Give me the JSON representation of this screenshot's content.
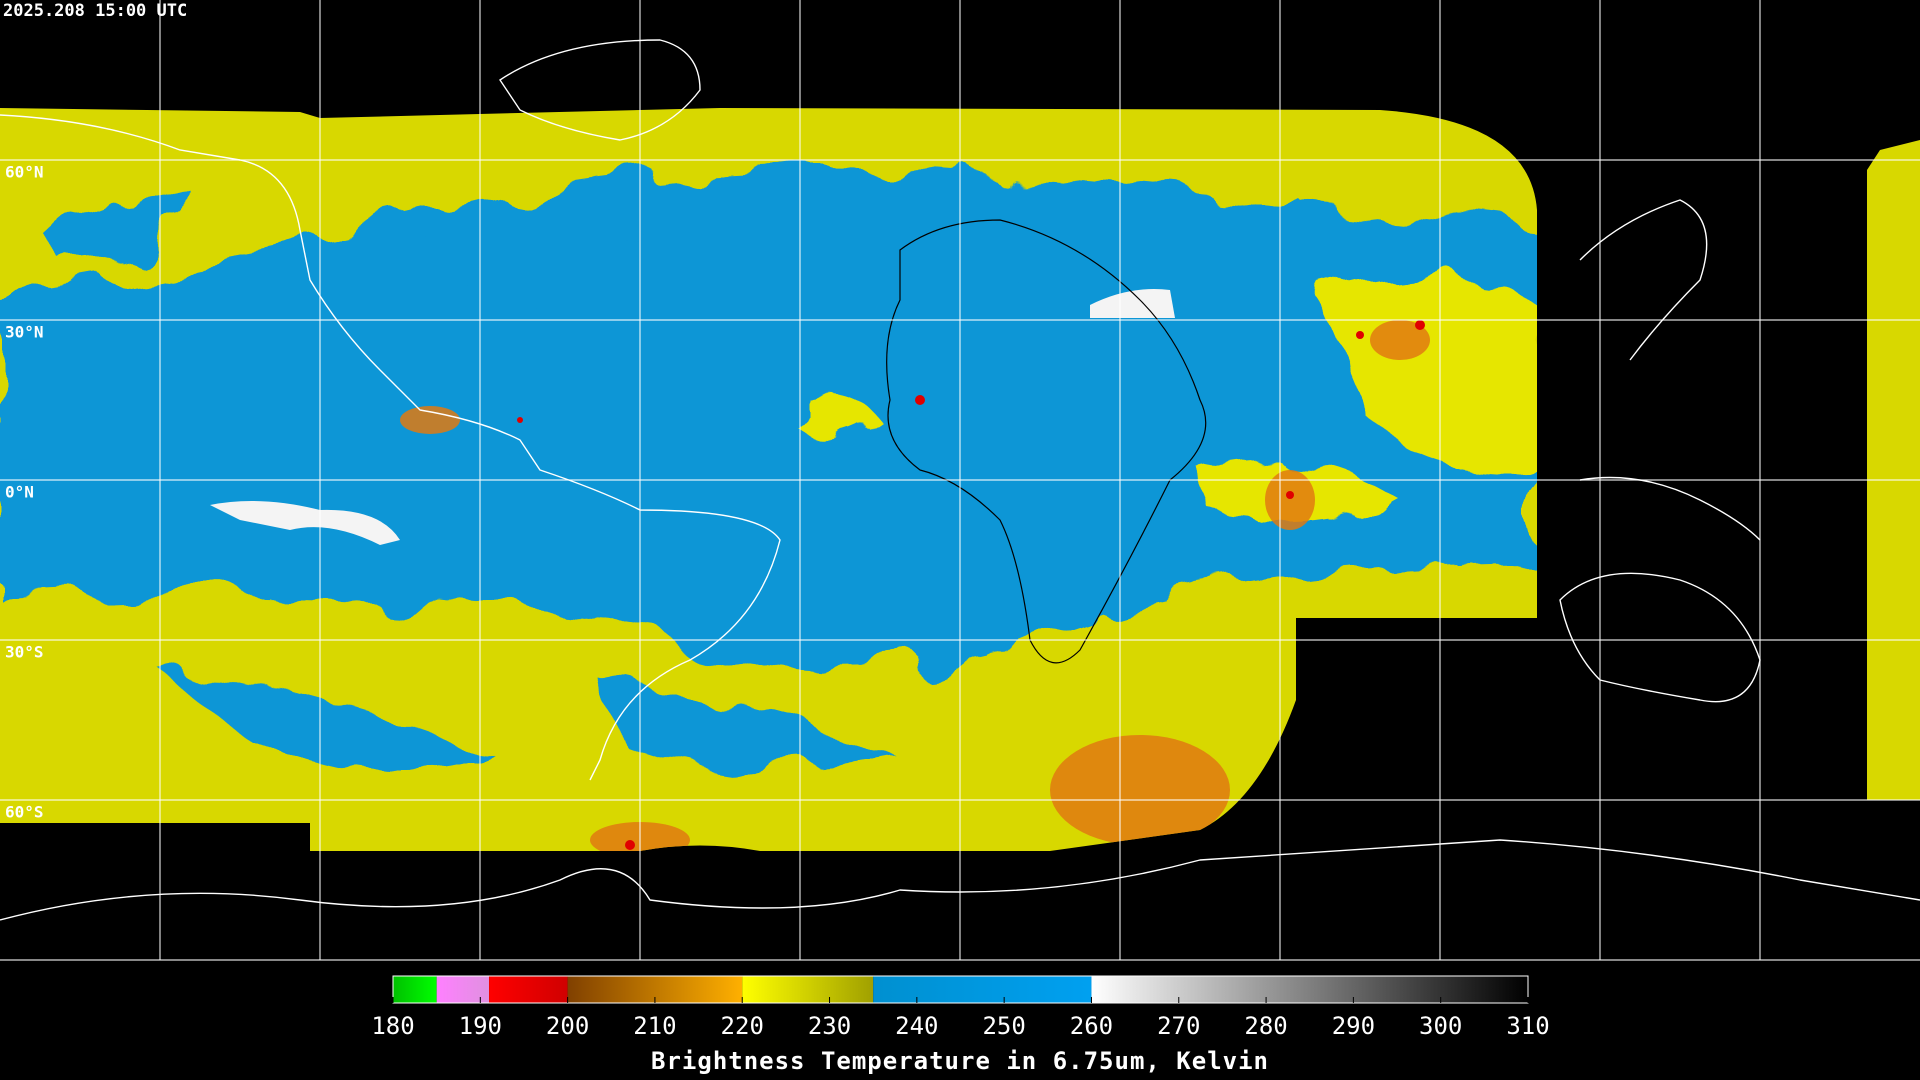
{
  "timestamp": "2025.208 15:00 UTC",
  "lat_labels": [
    "60°N",
    "30°N",
    "0°N",
    "30°S",
    "60°S"
  ],
  "colorbar": {
    "title": "Brightness Temperature in 6.75um, Kelvin",
    "range": [
      180,
      310
    ],
    "ticks": [
      180,
      190,
      200,
      210,
      220,
      230,
      240,
      250,
      260,
      270,
      280,
      290,
      300,
      310
    ],
    "segments": [
      {
        "from": 180,
        "to": 185,
        "colors": [
          "#00c000",
          "#00ff00"
        ]
      },
      {
        "from": 185,
        "to": 191,
        "colors": [
          "#ff80ff",
          "#e090e0"
        ]
      },
      {
        "from": 191,
        "to": 200,
        "colors": [
          "#ff0000",
          "#d00000"
        ]
      },
      {
        "from": 200,
        "to": 220,
        "colors": [
          "#804000",
          "#ffb000"
        ]
      },
      {
        "from": 220,
        "to": 235,
        "colors": [
          "#ffff00",
          "#a0a000"
        ]
      },
      {
        "from": 235,
        "to": 260,
        "colors": [
          "#0090d0",
          "#00a0f0"
        ]
      },
      {
        "from": 260,
        "to": 310,
        "colors": [
          "#ffffff",
          "#000000"
        ]
      }
    ]
  }
}
